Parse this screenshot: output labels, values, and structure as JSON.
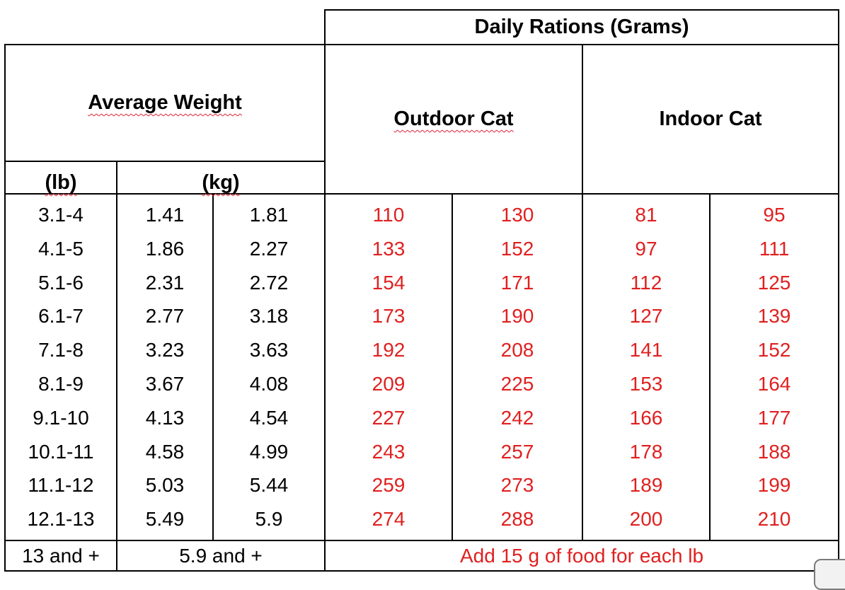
{
  "header": {
    "daily_rations": "Daily Rations (Grams)",
    "average_weight": "Average Weight",
    "outdoor_cat": "Outdoor Cat",
    "indoor_cat": "Indoor Cat",
    "lb": "(lb)",
    "kg": "(kg)"
  },
  "rows": [
    {
      "lb": "3.1-4",
      "kg_min": "1.41",
      "kg_max": "1.81",
      "out_min": "110",
      "out_max": "130",
      "in_min": "81",
      "in_max": "95"
    },
    {
      "lb": "4.1-5",
      "kg_min": "1.86",
      "kg_max": "2.27",
      "out_min": "133",
      "out_max": "152",
      "in_min": "97",
      "in_max": "111"
    },
    {
      "lb": "5.1-6",
      "kg_min": "2.31",
      "kg_max": "2.72",
      "out_min": "154",
      "out_max": "171",
      "in_min": "112",
      "in_max": "125"
    },
    {
      "lb": "6.1-7",
      "kg_min": "2.77",
      "kg_max": "3.18",
      "out_min": "173",
      "out_max": "190",
      "in_min": "127",
      "in_max": "139"
    },
    {
      "lb": "7.1-8",
      "kg_min": "3.23",
      "kg_max": "3.63",
      "out_min": "192",
      "out_max": "208",
      "in_min": "141",
      "in_max": "152"
    },
    {
      "lb": "8.1-9",
      "kg_min": "3.67",
      "kg_max": "4.08",
      "out_min": "209",
      "out_max": "225",
      "in_min": "153",
      "in_max": "164"
    },
    {
      "lb": "9.1-10",
      "kg_min": "4.13",
      "kg_max": "4.54",
      "out_min": "227",
      "out_max": "242",
      "in_min": "166",
      "in_max": "177"
    },
    {
      "lb": "10.1-11",
      "kg_min": "4.58",
      "kg_max": "4.99",
      "out_min": "243",
      "out_max": "257",
      "in_min": "178",
      "in_max": "188"
    },
    {
      "lb": "11.1-12",
      "kg_min": "5.03",
      "kg_max": "5.44",
      "out_min": "259",
      "out_max": "273",
      "in_min": "189",
      "in_max": "199"
    },
    {
      "lb": "12.1-13",
      "kg_min": "5.49",
      "kg_max": "5.9",
      "out_min": "274",
      "out_max": "288",
      "in_min": "200",
      "in_max": "210"
    }
  ],
  "last_row": {
    "lb": "13 and +",
    "kg": "5.9 and +",
    "note": "Add 15 g of food for each lb"
  },
  "colors": {
    "ration_text": "#e02020",
    "grid": "#000000",
    "spell_underline": "#dd2233"
  }
}
